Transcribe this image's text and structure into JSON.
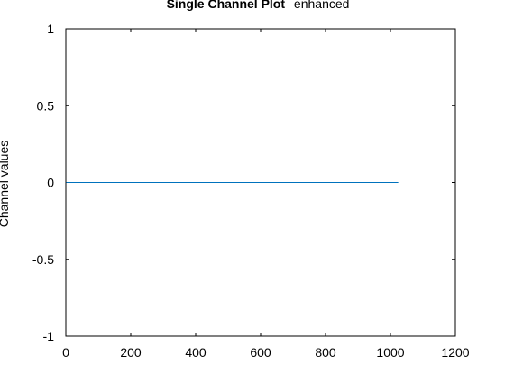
{
  "chart_data": {
    "type": "line",
    "title_bold": "Single Channel Plot",
    "title_rest": "enhanced",
    "xlabel": "",
    "ylabel": "Channel values",
    "xlim": [
      0,
      1200
    ],
    "ylim": [
      -1,
      1
    ],
    "xticks": [
      0,
      200,
      400,
      600,
      800,
      1000,
      1200
    ],
    "yticks": [
      1,
      0.5,
      0,
      -0.5,
      -1
    ],
    "ytick_labels": [
      "1",
      "0.5",
      "0",
      "-0.5",
      "-1"
    ],
    "grid": false,
    "series": [
      {
        "color": "#0072BD",
        "x": [
          1,
          1024
        ],
        "y": [
          0,
          0
        ]
      }
    ]
  }
}
